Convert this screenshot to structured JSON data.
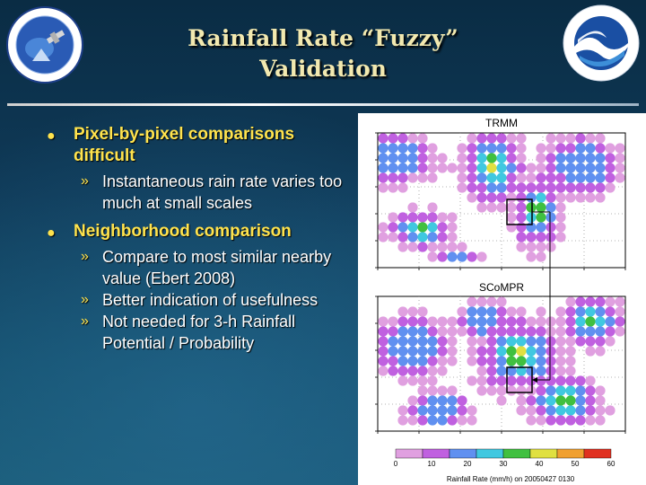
{
  "title": {
    "line1": "Rainfall Rate “Fuzzy”",
    "line2": "Validation"
  },
  "logos": {
    "left": "noaa-nesdis-star-seal-icon",
    "right": "noaa-logo-icon"
  },
  "bullets": [
    {
      "text": "Pixel-by-pixel comparisons difficult",
      "subs": [
        "Instantaneous rain rate varies too much at small scales"
      ]
    },
    {
      "text": "Neighborhood comparison",
      "subs": [
        "Compare to most similar nearby value (Ebert 2008)",
        "Better indication of usefulness",
        "Not needed for 3-h Rainfall Potential / Probability"
      ]
    }
  ],
  "figure": {
    "top_panel_label": "TRMM",
    "bottom_panel_label": "SCoMPR",
    "colorbar_ticks": [
      "0",
      "10",
      "20",
      "30",
      "40",
      "50",
      "60"
    ],
    "colorbar_label": "Rainfall Rate (mm/h) on 20050427 0130",
    "colors": [
      "#ffffff",
      "#e0a0e0",
      "#c060e0",
      "#6090f0",
      "#40c8e0",
      "#40c040",
      "#e0e040",
      "#f0a030",
      "#e03020"
    ]
  }
}
